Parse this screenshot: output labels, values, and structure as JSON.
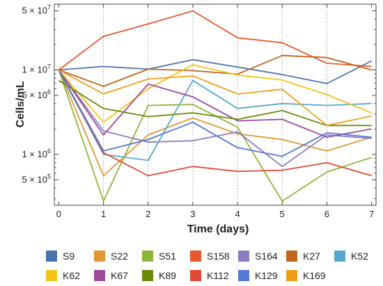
{
  "chart_data": {
    "type": "line",
    "xlabel": "Time (days)",
    "ylabel": "Cells/mL",
    "yscale": "log",
    "xlim": [
      -0.1,
      7.1
    ],
    "ylim": [
      250000,
      60000000
    ],
    "x": [
      0,
      1,
      2,
      3,
      4,
      5,
      6,
      7
    ],
    "x_ticks": [
      "0",
      "1",
      "2",
      "3",
      "4",
      "5",
      "6",
      "7"
    ],
    "y_ticks": [
      {
        "value": 500000,
        "mantissa": "5",
        "exponent": "5"
      },
      {
        "value": 1000000,
        "mantissa": "1",
        "exponent": "6"
      },
      {
        "value": 5000000,
        "mantissa": "5",
        "exponent": "6"
      },
      {
        "value": 10000000,
        "mantissa": "1",
        "exponent": "7"
      },
      {
        "value": 50000000,
        "mantissa": "5",
        "exponent": "7"
      }
    ],
    "vertical_gridlines": [
      1,
      2,
      3,
      4,
      5,
      6
    ],
    "legend_position": "bottom",
    "series": [
      {
        "name": "S9",
        "color": "#4a74b0",
        "values": [
          10000000,
          11000000,
          10200000,
          13200000,
          10800000,
          8800000,
          6900000,
          12800000
        ]
      },
      {
        "name": "S22",
        "color": "#e39733",
        "values": [
          10000000,
          560000,
          1700000,
          2700000,
          1750000,
          1500000,
          1100000,
          1600000
        ]
      },
      {
        "name": "S51",
        "color": "#8db53a",
        "values": [
          10000000,
          280000,
          3800000,
          3900000,
          2100000,
          280000,
          620000,
          920000
        ]
      },
      {
        "name": "S158",
        "color": "#e8582c",
        "values": [
          10000000,
          25000000,
          35000000,
          50000000,
          24000000,
          21000000,
          12000000,
          11000000
        ]
      },
      {
        "name": "S164",
        "color": "#8b7cc0",
        "values": [
          10000000,
          1900000,
          1400000,
          1450000,
          1850000,
          720000,
          1700000,
          1550000
        ]
      },
      {
        "name": "K27",
        "color": "#c0641e",
        "values": [
          10000000,
          6400000,
          10200000,
          9800000,
          8900000,
          14800000,
          14000000,
          10000000
        ]
      },
      {
        "name": "K52",
        "color": "#56a8cf",
        "values": [
          10000000,
          1000000,
          850000,
          7500000,
          3500000,
          4000000,
          3800000,
          4000000
        ]
      },
      {
        "name": "K62",
        "color": "#f6c212",
        "values": [
          10000000,
          2400000,
          6000000,
          11500000,
          8700000,
          7600000,
          5100000,
          3100000
        ]
      },
      {
        "name": "K67",
        "color": "#9c4a9c",
        "values": [
          10000000,
          1700000,
          6800000,
          4800000,
          2500000,
          2600000,
          1600000,
          2000000
        ]
      },
      {
        "name": "K89",
        "color": "#6a8a0a",
        "values": [
          7500000,
          3500000,
          2800000,
          3100000,
          2600000,
          3300000,
          2200000,
          2200000
        ]
      },
      {
        "name": "K112",
        "color": "#e04a35",
        "values": [
          10000000,
          1050000,
          560000,
          720000,
          630000,
          650000,
          800000,
          560000
        ]
      },
      {
        "name": "K129",
        "color": "#5577d6",
        "values": [
          10000000,
          1100000,
          1500000,
          2400000,
          1200000,
          950000,
          1800000,
          1600000
        ]
      },
      {
        "name": "K169",
        "color": "#f09e1a",
        "values": [
          10000000,
          5200000,
          7800000,
          8500000,
          5200000,
          5900000,
          2200000,
          2850000
        ]
      }
    ]
  }
}
